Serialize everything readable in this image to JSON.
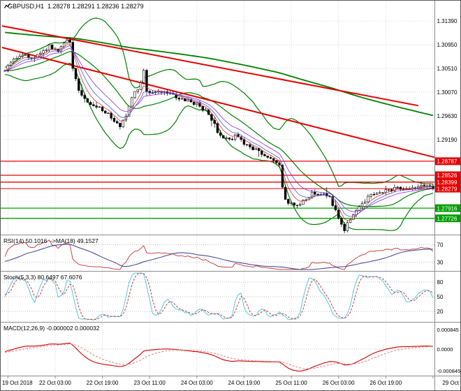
{
  "header": {
    "symbol_timeframe": "GBPUSD,H1",
    "ohlc": "1.28278 1.28291 1.28236 1.28279"
  },
  "indicators": {
    "rsi": {
      "label": "RSI(14) 50.1016  ->MA(18) 49.1527",
      "levels": [
        70,
        30
      ],
      "axis_labels": [
        "70",
        "30"
      ]
    },
    "stoch": {
      "label": "Stoch(5,3,3) 80.6497 67.6076",
      "levels": [
        80,
        50,
        20
      ],
      "axis_labels": [
        "80",
        "50",
        "20"
      ]
    },
    "macd": {
      "label": "MACD(12,26,9) -0.000002 0.000032",
      "axis_labels": [
        "0.000845",
        "0.0000",
        "-0.000845"
      ]
    }
  },
  "chart_data": {
    "type": "candlestick",
    "symbol": "GBPUSD",
    "timeframe": "H1",
    "bars_visible": 146,
    "price_range": {
      "min": 1.2745,
      "max": 1.316
    },
    "y_axis_labels": [
      {
        "text": "1.31390",
        "price": 1.3139
      },
      {
        "text": "1.30950",
        "price": 1.3095
      },
      {
        "text": "1.30510",
        "price": 1.3051
      },
      {
        "text": "1.30070",
        "price": 1.3007
      },
      {
        "text": "1.29630",
        "price": 1.2963
      },
      {
        "text": "1.29190",
        "price": 1.2919
      }
    ],
    "levels": [
      {
        "price": 1.28787,
        "text": "1.28787",
        "type": "resistance",
        "color": "#e60000"
      },
      {
        "price": 1.28526,
        "text": "1.28526",
        "type": "resistance",
        "color": "#e60000"
      },
      {
        "price": 1.28399,
        "text": "1.28399",
        "type": "resistance",
        "color": "#e60000"
      },
      {
        "price": 1.27916,
        "text": "1.27916",
        "type": "support",
        "color": "#00a000"
      },
      {
        "price": 1.27726,
        "text": "1.27726",
        "type": "support",
        "color": "#00a000"
      }
    ],
    "current_price": {
      "price": 1.28279,
      "text": "1.28279"
    },
    "trendlines": [
      {
        "b1": -1,
        "p1": 1.313,
        "b2": 140,
        "p2": 1.2982
      },
      {
        "b1": -1,
        "p1": 1.309,
        "b2": 145.5,
        "p2": 1.2886
      }
    ],
    "time_ticks": [
      {
        "bar": 1,
        "label": "19 Oct 2018"
      },
      {
        "bar": 17,
        "label": "22 Oct 03:00"
      },
      {
        "bar": 33,
        "label": "22 Oct 19:00"
      },
      {
        "bar": 49,
        "label": "23 Oct 11:00"
      },
      {
        "bar": 65,
        "label": "24 Oct 03:00"
      },
      {
        "bar": 81,
        "label": "24 Oct 19:00"
      },
      {
        "bar": 97,
        "label": "25 Oct 11:00"
      },
      {
        "bar": 113,
        "label": "26 Oct 03:00"
      },
      {
        "bar": 129,
        "label": "26 Oct 19:00"
      },
      {
        "bar": 145,
        "label": "29 Oct"
      }
    ],
    "indicator_params": {
      "bb": [
        20,
        2
      ],
      "ma_long": 200,
      "emas": [
        5,
        8,
        13
      ],
      "rsi": [
        14,
        18
      ],
      "stoch": [
        5,
        3,
        3
      ],
      "macd": [
        12,
        26,
        9
      ]
    },
    "anchors": [
      [
        -215,
        1.3185
      ],
      [
        -150,
        1.315
      ],
      [
        -80,
        1.3118
      ],
      [
        -30,
        1.3064
      ],
      [
        -10,
        1.3042
      ],
      [
        0,
        1.3048
      ],
      [
        3,
        1.3065
      ],
      [
        6,
        1.3078
      ],
      [
        9,
        1.307
      ],
      [
        12,
        1.308
      ],
      [
        15,
        1.3092
      ],
      [
        18,
        1.3086
      ],
      [
        21,
        1.3102
      ],
      [
        22,
        1.3096
      ],
      [
        23,
        1.3052
      ],
      [
        25,
        1.3008
      ],
      [
        27,
        1.2992
      ],
      [
        30,
        1.2985
      ],
      [
        33,
        1.2972
      ],
      [
        36,
        1.2962
      ],
      [
        38,
        1.2948
      ],
      [
        39,
        1.2942
      ],
      [
        41,
        1.2965
      ],
      [
        44,
        1.3008
      ],
      [
        46,
        1.3022
      ],
      [
        47,
        1.3044
      ],
      [
        48,
        1.3012
      ],
      [
        50,
        1.3002
      ],
      [
        53,
        1.3008
      ],
      [
        56,
        1.3003
      ],
      [
        59,
        1.2997
      ],
      [
        62,
        1.299
      ],
      [
        65,
        1.2985
      ],
      [
        68,
        1.2972
      ],
      [
        70,
        1.2958
      ],
      [
        72,
        1.2935
      ],
      [
        74,
        1.2922
      ],
      [
        76,
        1.2918
      ],
      [
        78,
        1.2926
      ],
      [
        80,
        1.2916
      ],
      [
        83,
        1.2906
      ],
      [
        86,
        1.2898
      ],
      [
        89,
        1.2888
      ],
      [
        91,
        1.2878
      ],
      [
        93,
        1.2872
      ],
      [
        94,
        1.283
      ],
      [
        95,
        1.2806
      ],
      [
        97,
        1.2798
      ],
      [
        99,
        1.2794
      ],
      [
        101,
        1.2803
      ],
      [
        104,
        1.2818
      ],
      [
        107,
        1.282
      ],
      [
        110,
        1.281
      ],
      [
        112,
        1.2788
      ],
      [
        114,
        1.2762
      ],
      [
        115,
        1.2752
      ],
      [
        117,
        1.2772
      ],
      [
        119,
        1.279
      ],
      [
        121,
        1.2803
      ],
      [
        124,
        1.2814
      ],
      [
        127,
        1.282
      ],
      [
        130,
        1.2824
      ],
      [
        133,
        1.2829
      ],
      [
        136,
        1.2824
      ],
      [
        139,
        1.283
      ],
      [
        142,
        1.2836
      ],
      [
        145,
        1.28279
      ]
    ]
  },
  "colors": {
    "background": "#ffffff",
    "grid": "#c4c4c4",
    "divider": "#8c8c8c",
    "border": "#5a5a5a",
    "candle": "#000000",
    "bull_fill": "#ffffff",
    "bb": "#008000",
    "long_ma": "#008000",
    "ema_fast": "#e03030",
    "ema_mid": "#3a5fd9",
    "ema_slow": "#8a2be2",
    "trend": "#e60000",
    "current": "#e60000",
    "rsi": "#c84646",
    "rsi_ma": "#3c3c8c",
    "stoch_k": "#56c8dc",
    "stoch_d": "#c83c3c",
    "macd": "#cc0000",
    "macd_signal": "#e08080",
    "axis_text": "#000000",
    "box_text": "#ffffff"
  }
}
